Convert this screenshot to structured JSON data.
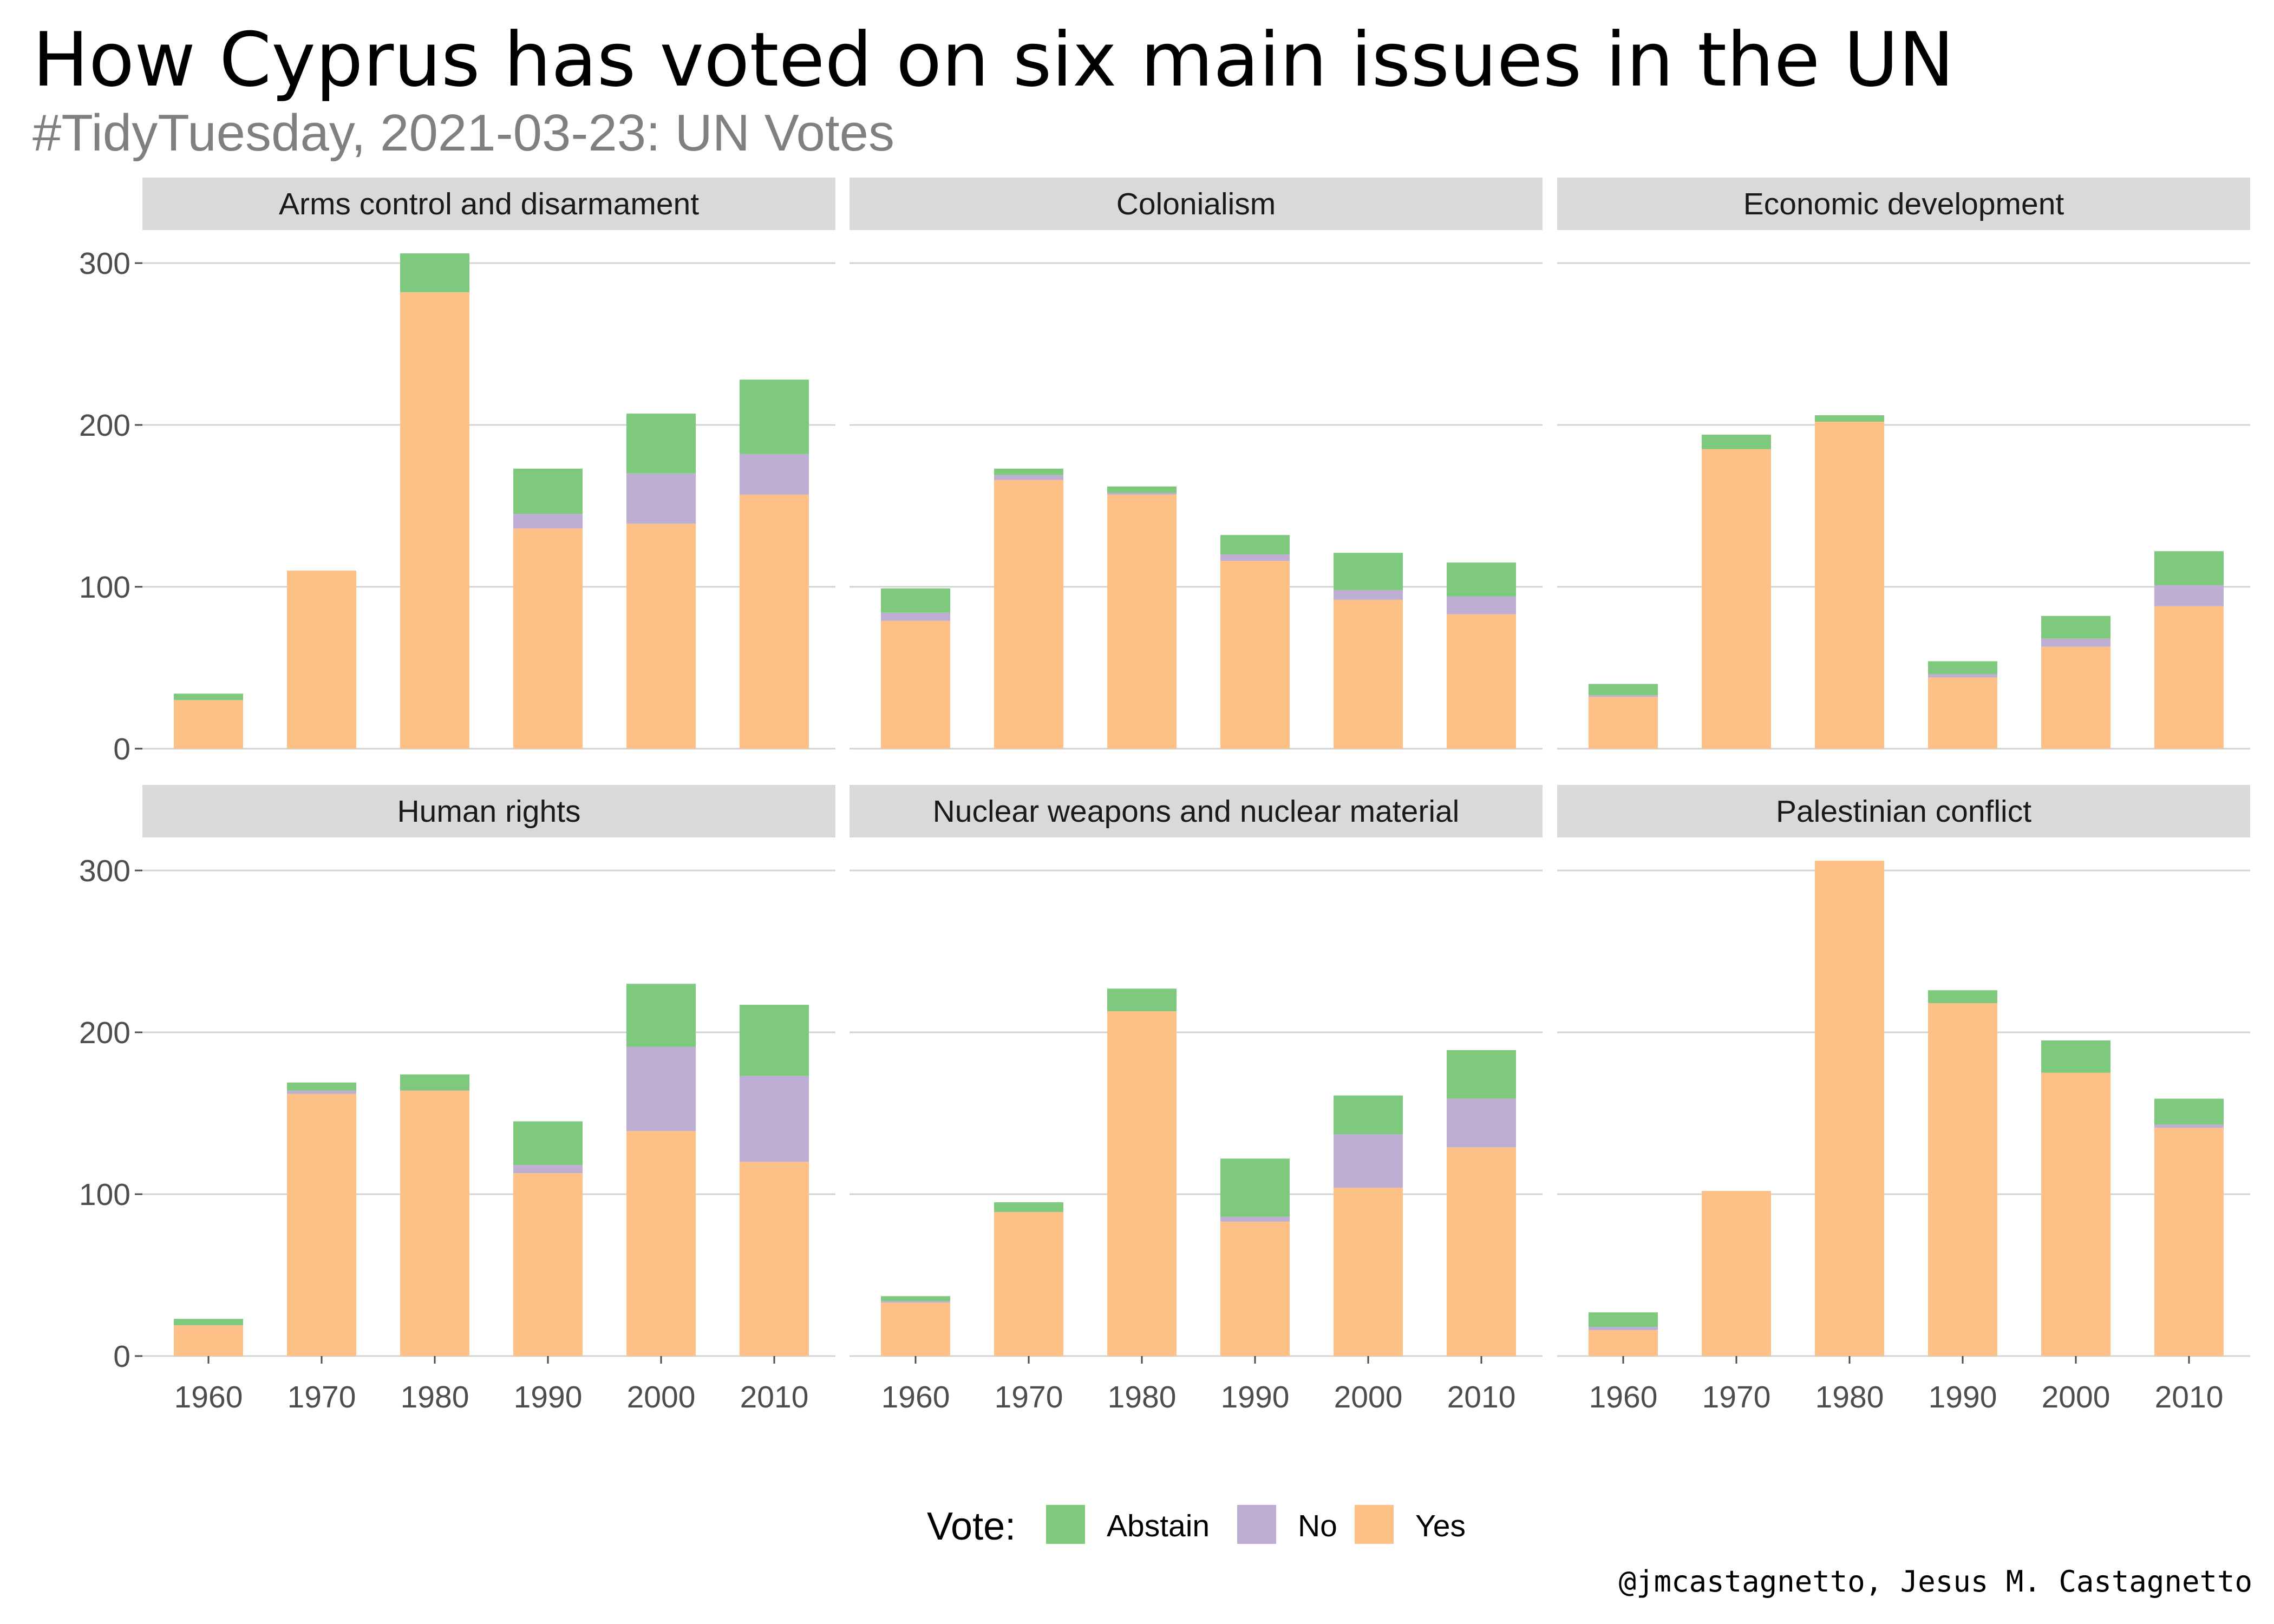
{
  "title": "How Cyprus has voted on six main issues in the UN",
  "subtitle": "#TidyTuesday, 2021-03-23: UN Votes",
  "caption": "@jmcastagnetto, Jesus M. Castagnetto",
  "legend": {
    "title": "Vote:",
    "position": "bottom",
    "items": [
      {
        "label": "Abstain",
        "color": "#7fc97f"
      },
      {
        "label": "No",
        "color": "#beaed4"
      },
      {
        "label": "Yes",
        "color": "#fdc086"
      }
    ]
  },
  "chart_data": {
    "type": "bar",
    "stacked": true,
    "facet": "wrap",
    "ncol": 3,
    "categories": [
      "1960",
      "1970",
      "1980",
      "1990",
      "2000",
      "2010"
    ],
    "ylim": [
      0,
      310
    ],
    "yticks": [
      0,
      100,
      200,
      300
    ],
    "grid": true,
    "stack_order": [
      "Yes",
      "No",
      "Abstain"
    ],
    "panels": [
      {
        "title": "Arms control and disarmament",
        "series": [
          {
            "name": "Yes",
            "values": [
              30,
              110,
              282,
              136,
              139,
              157
            ]
          },
          {
            "name": "No",
            "values": [
              0,
              0,
              0,
              9,
              31,
              25
            ]
          },
          {
            "name": "Abstain",
            "values": [
              4,
              0,
              24,
              28,
              37,
              46
            ]
          }
        ]
      },
      {
        "title": "Colonialism",
        "series": [
          {
            "name": "Yes",
            "values": [
              79,
              166,
              157,
              116,
              92,
              83
            ]
          },
          {
            "name": "No",
            "values": [
              5,
              3,
              1,
              4,
              6,
              11
            ]
          },
          {
            "name": "Abstain",
            "values": [
              15,
              4,
              4,
              12,
              23,
              21
            ]
          }
        ]
      },
      {
        "title": "Economic development",
        "series": [
          {
            "name": "Yes",
            "values": [
              32,
              185,
              202,
              44,
              63,
              88
            ]
          },
          {
            "name": "No",
            "values": [
              1,
              0,
              0,
              2,
              5,
              13
            ]
          },
          {
            "name": "Abstain",
            "values": [
              7,
              9,
              4,
              8,
              14,
              21
            ]
          }
        ]
      },
      {
        "title": "Human rights",
        "series": [
          {
            "name": "Yes",
            "values": [
              19,
              162,
              164,
              113,
              139,
              120
            ]
          },
          {
            "name": "No",
            "values": [
              0,
              2,
              0,
              5,
              52,
              53
            ]
          },
          {
            "name": "Abstain",
            "values": [
              4,
              5,
              10,
              27,
              39,
              44
            ]
          }
        ]
      },
      {
        "title": "Nuclear weapons and nuclear material",
        "series": [
          {
            "name": "Yes",
            "values": [
              33,
              89,
              213,
              83,
              104,
              129
            ]
          },
          {
            "name": "No",
            "values": [
              1,
              0,
              0,
              3,
              33,
              30
            ]
          },
          {
            "name": "Abstain",
            "values": [
              3,
              6,
              14,
              36,
              24,
              30
            ]
          }
        ]
      },
      {
        "title": "Palestinian conflict",
        "series": [
          {
            "name": "Yes",
            "values": [
              16,
              102,
              306,
              218,
              175,
              141
            ]
          },
          {
            "name": "No",
            "values": [
              2,
              0,
              0,
              0,
              0,
              2
            ]
          },
          {
            "name": "Abstain",
            "values": [
              9,
              0,
              0,
              8,
              20,
              16
            ]
          }
        ]
      }
    ]
  }
}
